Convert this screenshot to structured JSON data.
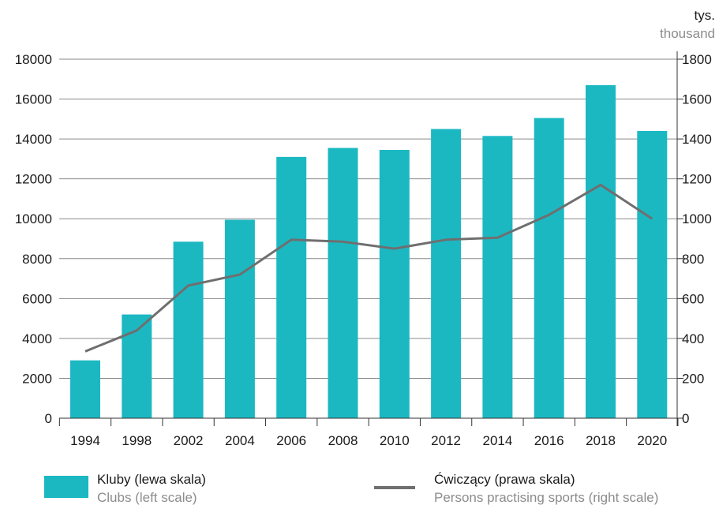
{
  "chart_data": {
    "type": "bar",
    "categories": [
      "1994",
      "1998",
      "2002",
      "2004",
      "2006",
      "2008",
      "2010",
      "2012",
      "2014",
      "2016",
      "2018",
      "2020"
    ],
    "series": [
      {
        "name": "Kluby (lewa skala)",
        "name_en": "Clubs (left scale)",
        "type": "bar",
        "axis": "left",
        "color": "#1bb8c2",
        "values": [
          2900,
          5200,
          8850,
          9950,
          13100,
          13550,
          13450,
          14500,
          14150,
          15050,
          16700,
          14400
        ]
      },
      {
        "name": "Ćwiczący (prawa skala)",
        "name_en": "Persons practising sports (right scale)",
        "type": "line",
        "axis": "right",
        "color": "#6f6f6f",
        "values": [
          335,
          440,
          665,
          720,
          895,
          885,
          850,
          895,
          905,
          1020,
          1170,
          1000
        ]
      }
    ],
    "left_axis": {
      "ylim": [
        0,
        18000
      ],
      "ticks": [
        0,
        2000,
        4000,
        6000,
        8000,
        10000,
        12000,
        14000,
        16000,
        18000
      ]
    },
    "right_axis": {
      "ylim": [
        0,
        1800
      ],
      "ticks": [
        0,
        200,
        400,
        600,
        800,
        1000,
        1200,
        1400,
        1600,
        1800
      ],
      "unit_label": "tys.",
      "unit_label_en": "thousand"
    },
    "grid": true,
    "legend_position": "bottom"
  }
}
